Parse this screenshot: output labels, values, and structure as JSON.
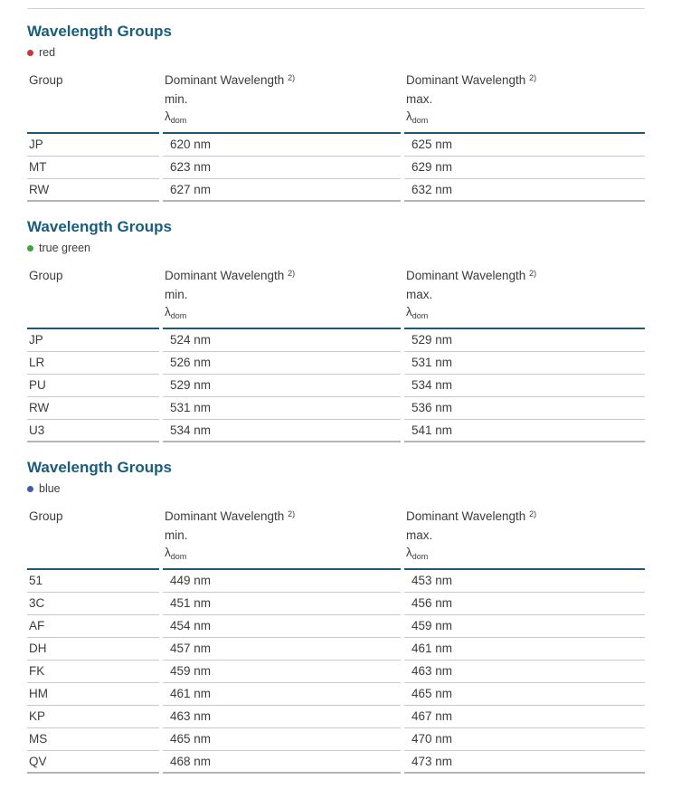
{
  "page": {
    "type": "datasheet-table-page"
  },
  "colors": {
    "heading": "#185d7b",
    "header_border": "#1f5870",
    "row_border": "#c9c9c9",
    "table_end_border": "#b5b5b5",
    "top_rule": "#d2d2d2",
    "body_text": "#3c3c3c"
  },
  "sections": [
    {
      "title": "Wavelength Groups",
      "legend": {
        "label": "red",
        "color": "#c43a3a"
      },
      "columns": {
        "group": "Group",
        "min": {
          "title": "Dominant Wavelength",
          "sup": "2)",
          "bound": "min.",
          "symbol": "λ",
          "sub": "dom"
        },
        "max": {
          "title": "Dominant Wavelength",
          "sup": "2)",
          "bound": "max.",
          "symbol": "λ",
          "sub": "dom"
        }
      },
      "rows": [
        {
          "group": "JP",
          "min": "620 nm",
          "max": "625 nm"
        },
        {
          "group": "MT",
          "min": "623 nm",
          "max": "629 nm"
        },
        {
          "group": "RW",
          "min": "627 nm",
          "max": "632 nm"
        }
      ]
    },
    {
      "title": "Wavelength Groups",
      "legend": {
        "label": "true green",
        "color": "#3fa33c"
      },
      "columns": {
        "group": "Group",
        "min": {
          "title": "Dominant Wavelength",
          "sup": "2)",
          "bound": "min.",
          "symbol": "λ",
          "sub": "dom"
        },
        "max": {
          "title": "Dominant Wavelength",
          "sup": "2)",
          "bound": "max.",
          "symbol": "λ",
          "sub": "dom"
        }
      },
      "rows": [
        {
          "group": "JP",
          "min": "524 nm",
          "max": "529 nm"
        },
        {
          "group": "LR",
          "min": "526 nm",
          "max": "531 nm"
        },
        {
          "group": "PU",
          "min": "529 nm",
          "max": "534 nm"
        },
        {
          "group": "RW",
          "min": "531 nm",
          "max": "536 nm"
        },
        {
          "group": "U3",
          "min": "534 nm",
          "max": "541 nm"
        }
      ]
    },
    {
      "title": "Wavelength Groups",
      "legend": {
        "label": "blue",
        "color": "#3d5fa9"
      },
      "columns": {
        "group": "Group",
        "min": {
          "title": "Dominant Wavelength",
          "sup": "2)",
          "bound": "min.",
          "symbol": "λ",
          "sub": "dom"
        },
        "max": {
          "title": "Dominant Wavelength",
          "sup": "2)",
          "bound": "max.",
          "symbol": "λ",
          "sub": "dom"
        }
      },
      "rows": [
        {
          "group": "51",
          "min": "449 nm",
          "max": "453 nm"
        },
        {
          "group": "3C",
          "min": "451 nm",
          "max": "456 nm"
        },
        {
          "group": "AF",
          "min": "454 nm",
          "max": "459 nm"
        },
        {
          "group": "DH",
          "min": "457 nm",
          "max": "461 nm"
        },
        {
          "group": "FK",
          "min": "459 nm",
          "max": "463 nm"
        },
        {
          "group": "HM",
          "min": "461 nm",
          "max": "465 nm"
        },
        {
          "group": "KP",
          "min": "463 nm",
          "max": "467 nm"
        },
        {
          "group": "MS",
          "min": "465 nm",
          "max": "470 nm"
        },
        {
          "group": "QV",
          "min": "468 nm",
          "max": "473 nm"
        }
      ]
    }
  ]
}
